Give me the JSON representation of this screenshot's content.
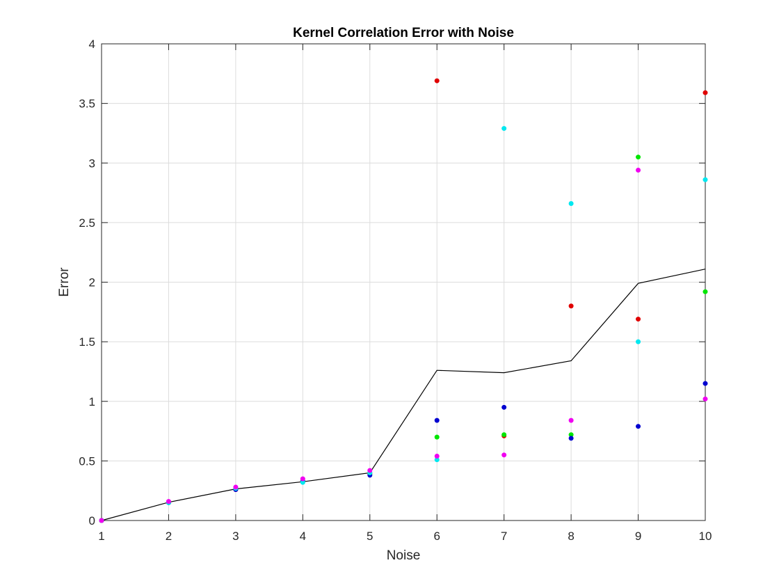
{
  "chart_data": {
    "type": "scatter",
    "title": "Kernel Correlation Error with Noise",
    "xlabel": "Noise",
    "ylabel": "Error",
    "xlim": [
      1,
      10
    ],
    "ylim": [
      0,
      4
    ],
    "xticks": [
      1,
      2,
      3,
      4,
      5,
      6,
      7,
      8,
      9,
      10
    ],
    "yticks": [
      0,
      0.5,
      1,
      1.5,
      2,
      2.5,
      3,
      3.5,
      4
    ],
    "grid": true,
    "legend": "none",
    "series": [
      {
        "type": "scatter",
        "color": "#e00000",
        "x": [
          1,
          2,
          3,
          4,
          5,
          6,
          7,
          8,
          9,
          10
        ],
        "y": [
          0,
          0.15,
          0.26,
          0.33,
          0.39,
          3.69,
          0.71,
          1.8,
          1.69,
          3.59
        ]
      },
      {
        "type": "scatter",
        "color": "#00e600",
        "x": [
          1,
          2,
          3,
          4,
          5,
          6,
          7,
          8,
          9,
          10
        ],
        "y": [
          0,
          0.15,
          0.27,
          0.33,
          0.4,
          0.7,
          0.72,
          0.72,
          3.05,
          1.92
        ]
      },
      {
        "type": "scatter",
        "color": "#0000d0",
        "x": [
          1,
          2,
          3,
          4,
          5,
          6,
          7,
          8,
          9,
          10
        ],
        "y": [
          0,
          0.15,
          0.26,
          0.33,
          0.38,
          0.84,
          0.95,
          0.69,
          0.79,
          1.15
        ]
      },
      {
        "type": "scatter",
        "color": "#00e8f0",
        "x": [
          1,
          2,
          3,
          4,
          5,
          6,
          7,
          8,
          9,
          10
        ],
        "y": [
          0,
          0.15,
          0.27,
          0.32,
          0.4,
          0.51,
          3.29,
          2.66,
          1.5,
          2.86
        ]
      },
      {
        "type": "scatter",
        "color": "#f000f0",
        "x": [
          1,
          2,
          3,
          4,
          5,
          6,
          7,
          8,
          9,
          10
        ],
        "y": [
          0,
          0.16,
          0.28,
          0.35,
          0.42,
          0.54,
          0.55,
          0.84,
          2.94,
          1.02
        ]
      },
      {
        "type": "line",
        "color": "#000000",
        "x": [
          1,
          2,
          3,
          4,
          5,
          6,
          7,
          8,
          9,
          10
        ],
        "y": [
          0,
          0.153,
          0.265,
          0.325,
          0.4,
          1.26,
          1.24,
          1.34,
          1.99,
          2.11
        ]
      }
    ]
  }
}
